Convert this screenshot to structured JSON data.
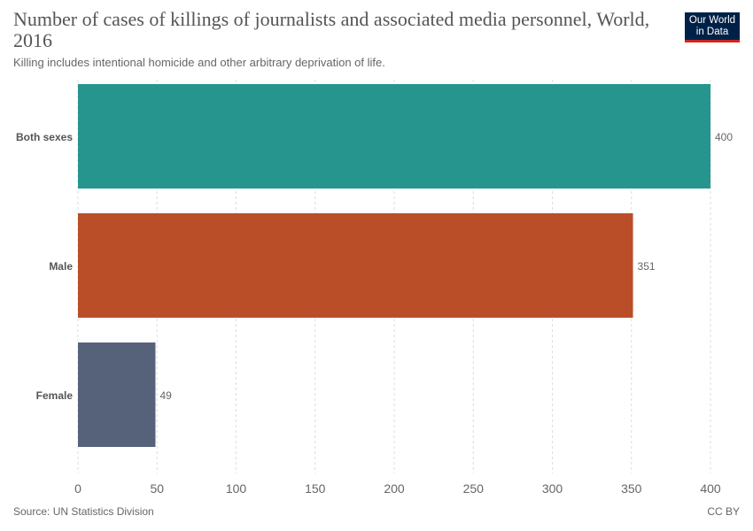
{
  "header": {
    "title": "Number of cases of killings of journalists and associated media personnel, World, 2016",
    "subtitle": "Killing includes intentional homicide and other arbitrary deprivation of life."
  },
  "logo": {
    "line1": "Our World",
    "line2": "in Data"
  },
  "footer": {
    "source": "Source: UN Statistics Division",
    "license": "CC BY"
  },
  "chart_data": {
    "type": "bar",
    "orientation": "horizontal",
    "title": "Number of cases of killings of journalists and associated media personnel, World, 2016",
    "categories": [
      "Both sexes",
      "Male",
      "Female"
    ],
    "values": [
      400,
      351,
      49
    ],
    "value_labels": [
      "400",
      "351",
      "49"
    ],
    "colors": [
      "#1a8f88",
      "#b5441c",
      "#4c5a73"
    ],
    "xlim": [
      0,
      400
    ],
    "xticks": [
      0,
      50,
      100,
      150,
      200,
      250,
      300,
      350,
      400
    ],
    "xtick_labels": [
      "0",
      "50",
      "100",
      "150",
      "200",
      "250",
      "300",
      "350",
      "400"
    ],
    "grid": true
  }
}
